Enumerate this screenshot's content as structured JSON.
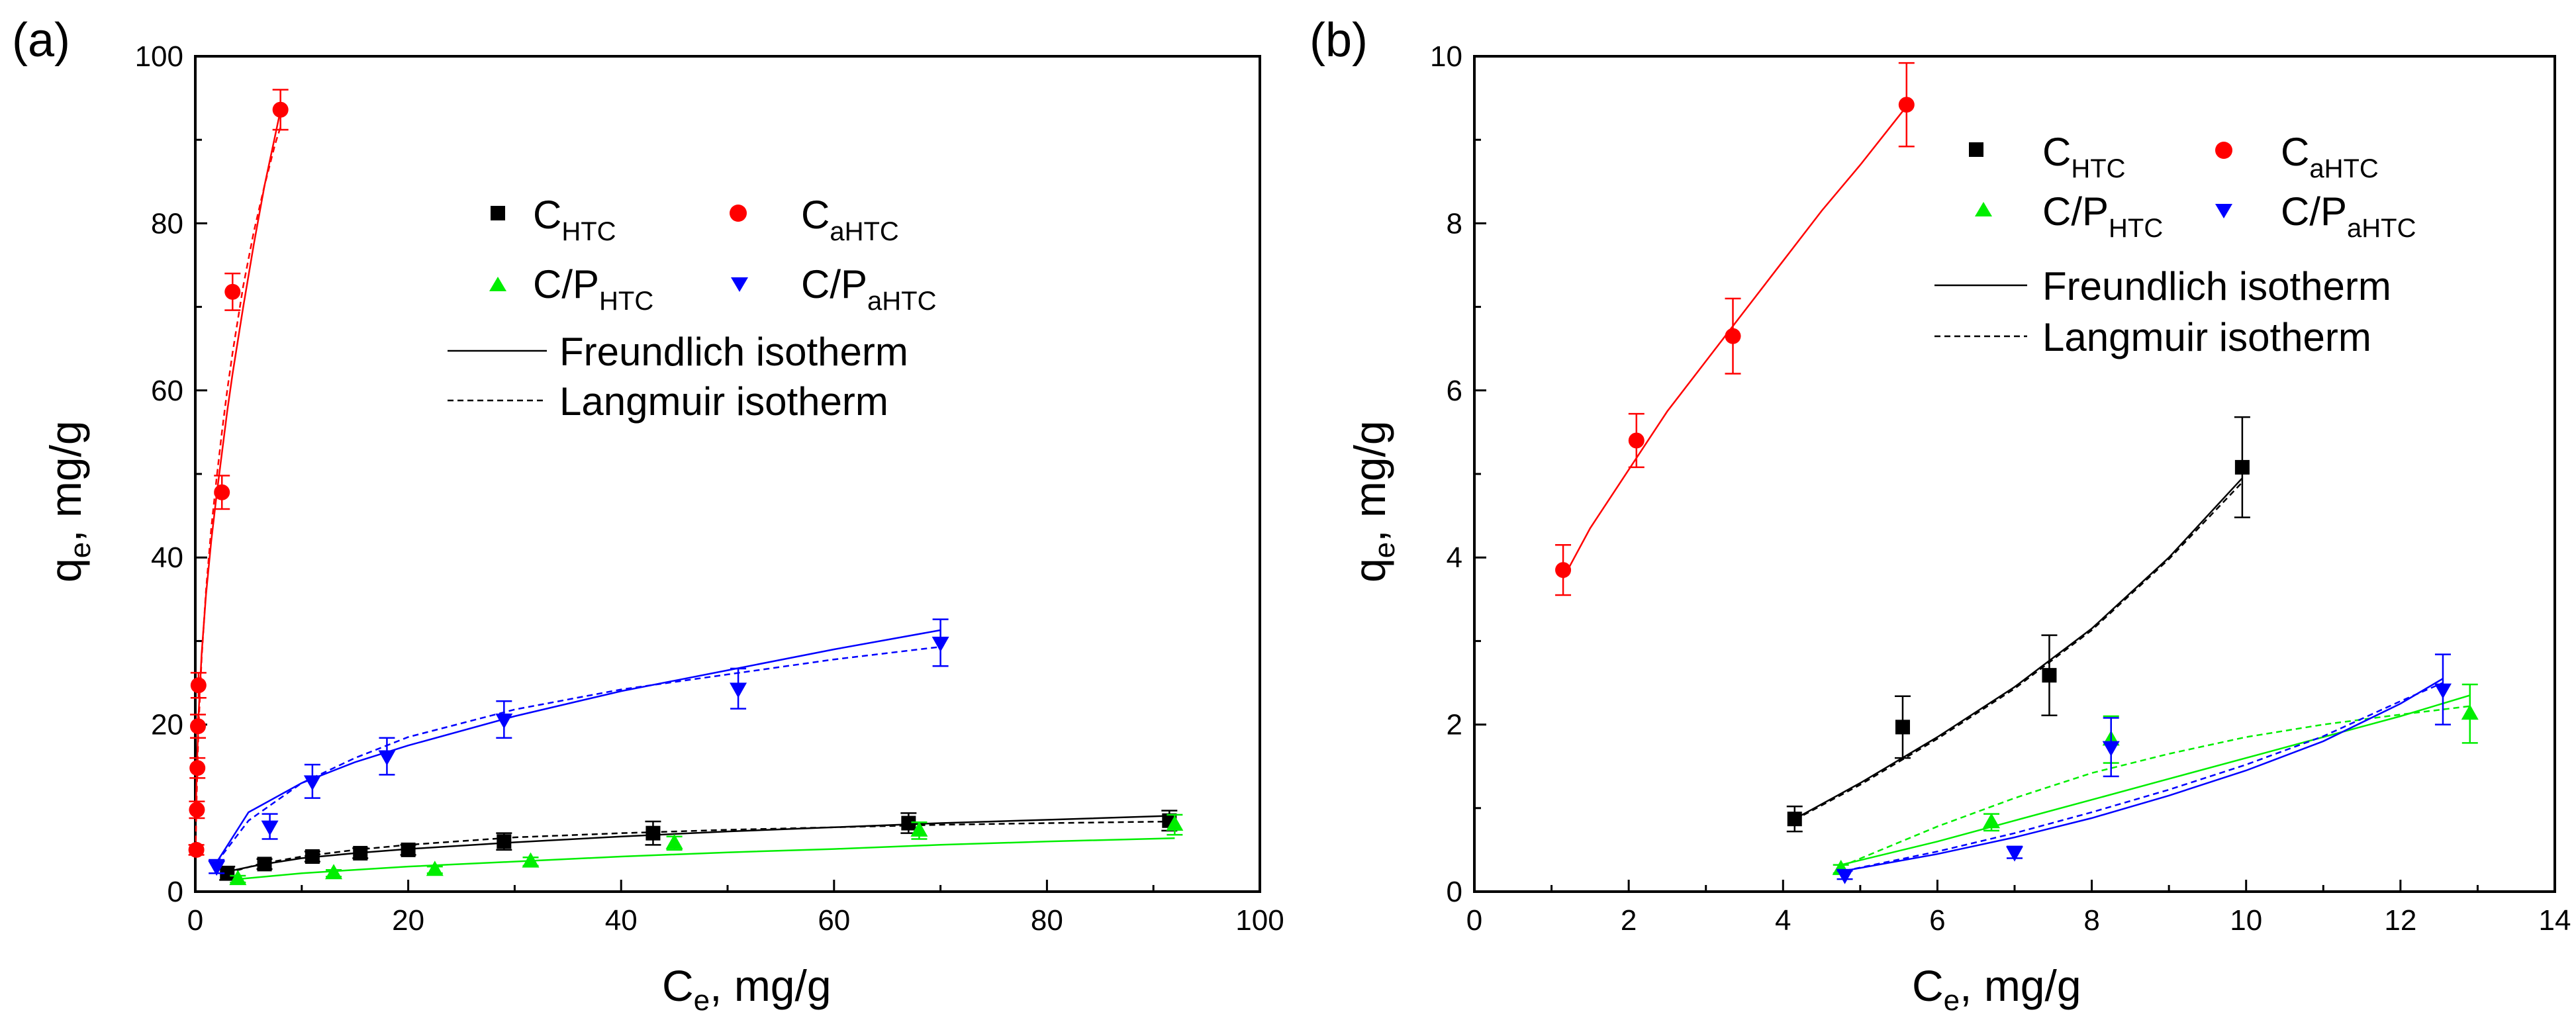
{
  "chart_data": [
    {
      "type": "scatter",
      "panel_label": "(a)",
      "xlabel": {
        "main": "C",
        "sub": "e",
        "rest": ", mg/g"
      },
      "ylabel": {
        "main": "q",
        "sub": "e",
        "rest": ", mg/g"
      },
      "xlim": [
        0,
        100
      ],
      "ylim": [
        0,
        100
      ],
      "xticks": [
        0,
        20,
        40,
        60,
        80,
        100
      ],
      "yticks": [
        0,
        20,
        40,
        60,
        80,
        100
      ],
      "xtick_labels": [
        "0",
        "20",
        "40",
        "60",
        "80",
        "100"
      ],
      "ytick_labels": [
        "0",
        "20",
        "40",
        "60",
        "80",
        "100"
      ],
      "legend_position": "top-center",
      "series": [
        {
          "name": "C_HTC",
          "label_main": "C",
          "label_sub": "HTC",
          "color": "#000000",
          "marker": "square",
          "x": [
            3,
            6.5,
            11,
            15.5,
            20,
            29,
            43,
            67,
            91.5
          ],
          "y": [
            2.2,
            3.3,
            4.2,
            4.6,
            5.0,
            6.0,
            7.0,
            8.2,
            8.5
          ],
          "err": [
            0.8,
            0.6,
            0.6,
            0.6,
            0.6,
            1.0,
            1.4,
            1.2,
            1.2
          ]
        },
        {
          "name": "C_aHTC",
          "label_main": "C",
          "label_sub": "aHTC",
          "color": "#ff0000",
          "marker": "circle",
          "x": [
            0.1,
            0.15,
            0.2,
            0.25,
            0.3,
            2.5,
            3.5,
            8
          ],
          "y": [
            5,
            9.8,
            14.8,
            19.8,
            24.7,
            47.8,
            71.8,
            93.6
          ],
          "err": [
            0.6,
            1.0,
            1.2,
            1.4,
            1.5,
            2.0,
            2.2,
            2.4
          ]
        },
        {
          "name": "C/P_HTC",
          "label_main": "C/P",
          "label_sub": "HTC",
          "color": "#00ee00",
          "marker": "triangle-up",
          "x": [
            4,
            13,
            22.5,
            31.5,
            45,
            68,
            92
          ],
          "y": [
            1.5,
            2.2,
            2.6,
            3.6,
            5.8,
            7.3,
            8.0
          ],
          "err": [
            0.4,
            0.4,
            0.4,
            0.5,
            0.8,
            1.0,
            1.2
          ]
        },
        {
          "name": "C/P_aHTC",
          "label_main": "C/P",
          "label_sub": "aHTC",
          "color": "#0000ff",
          "marker": "triangle-down",
          "x": [
            2,
            7,
            11,
            18,
            29,
            51,
            70
          ],
          "y": [
            3.0,
            7.8,
            13.2,
            16.2,
            20.6,
            24.3,
            29.8
          ],
          "err": [
            0.8,
            1.5,
            2.0,
            2.2,
            2.2,
            2.4,
            2.8
          ]
        }
      ],
      "fits": [
        {
          "series": "C_aHTC",
          "model": "Freundlich",
          "style": "solid",
          "color": "#ff0000",
          "x": [
            0.05,
            0.1,
            0.3,
            0.6,
            1.0,
            1.5,
            2.0,
            2.5,
            3.0,
            3.5,
            4.5,
            5.5,
            6.5,
            7.5,
            8.0
          ],
          "y": [
            9.0,
            12.5,
            21.0,
            28.5,
            35.5,
            42.0,
            47.5,
            52.5,
            57.5,
            62.0,
            70.0,
            77.5,
            84.5,
            90.5,
            93.5
          ]
        },
        {
          "series": "C_aHTC",
          "model": "Langmuir",
          "style": "dashed",
          "color": "#ff0000",
          "x": [
            0.05,
            0.1,
            0.3,
            0.6,
            1.0,
            1.5,
            2.0,
            2.5,
            3.0,
            3.5,
            4.5,
            5.5,
            6.5,
            7.5,
            8.0
          ],
          "y": [
            6.0,
            10.0,
            19.5,
            28.0,
            36.0,
            43.5,
            49.5,
            55.0,
            60.0,
            64.5,
            72.5,
            79.0,
            84.5,
            89.5,
            91.5
          ]
        },
        {
          "series": "C/P_aHTC",
          "model": "Freundlich",
          "style": "solid",
          "color": "#0000ff",
          "x": [
            2,
            5,
            10,
            15,
            20,
            30,
            40,
            50,
            60,
            70
          ],
          "y": [
            3.5,
            9.5,
            13.0,
            15.5,
            17.5,
            21.0,
            24.0,
            26.5,
            29.0,
            31.3
          ]
        },
        {
          "series": "C/P_aHTC",
          "model": "Langmuir",
          "style": "dashed",
          "color": "#0000ff",
          "x": [
            2,
            5,
            10,
            15,
            20,
            30,
            40,
            50,
            60,
            70
          ],
          "y": [
            3.5,
            8.5,
            13.0,
            16.0,
            18.5,
            21.8,
            24.2,
            26.0,
            27.8,
            29.3
          ]
        },
        {
          "series": "C_HTC",
          "model": "Freundlich",
          "style": "solid",
          "color": "#000000",
          "x": [
            3,
            6,
            10,
            15,
            20,
            30,
            40,
            50,
            60,
            70,
            80,
            92
          ],
          "y": [
            2.4,
            3.2,
            4.0,
            4.6,
            5.1,
            5.9,
            6.6,
            7.2,
            7.7,
            8.2,
            8.6,
            9.1
          ]
        },
        {
          "series": "C_HTC",
          "model": "Langmuir",
          "style": "dashed",
          "color": "#000000",
          "x": [
            3,
            6,
            10,
            15,
            20,
            30,
            40,
            50,
            60,
            70,
            80,
            92
          ],
          "y": [
            2.2,
            3.3,
            4.2,
            5.0,
            5.6,
            6.5,
            7.0,
            7.4,
            7.7,
            8.0,
            8.2,
            8.4
          ]
        },
        {
          "series": "C/P_HTC",
          "model": "Freundlich",
          "style": "solid",
          "color": "#00ee00",
          "x": [
            4,
            10,
            20,
            30,
            40,
            50,
            60,
            70,
            80,
            92
          ],
          "y": [
            1.5,
            2.2,
            3.0,
            3.6,
            4.2,
            4.7,
            5.1,
            5.6,
            6.0,
            6.4
          ]
        }
      ],
      "legend_lines": [
        "Freundlich isotherm",
        "Langmuir isotherm"
      ]
    },
    {
      "type": "scatter",
      "panel_label": "(b)",
      "xlabel": {
        "main": "C",
        "sub": "e",
        "rest": ", mg/g"
      },
      "ylabel": {
        "main": "q",
        "sub": "e",
        "rest": ", mg/g"
      },
      "xlim": [
        0,
        14
      ],
      "ylim": [
        0,
        10
      ],
      "xticks": [
        0,
        2,
        4,
        6,
        8,
        10,
        12,
        14
      ],
      "yticks": [
        0,
        2,
        4,
        6,
        8,
        10
      ],
      "xtick_labels": [
        "0",
        "2",
        "4",
        "6",
        "8",
        "10",
        "12",
        "14"
      ],
      "ytick_labels": [
        "0",
        "2",
        "4",
        "6",
        "8",
        "10"
      ],
      "legend_position": "top-right",
      "series": [
        {
          "name": "C_HTC",
          "label_main": "C",
          "label_sub": "HTC",
          "color": "#000000",
          "marker": "square",
          "x": [
            4.15,
            5.55,
            7.45,
            9.95
          ],
          "y": [
            0.87,
            1.97,
            2.59,
            5.08
          ],
          "err": [
            0.15,
            0.37,
            0.48,
            0.6
          ]
        },
        {
          "name": "C_aHTC",
          "label_main": "C",
          "label_sub": "aHTC",
          "color": "#ff0000",
          "marker": "circle",
          "x": [
            1.15,
            2.1,
            3.35,
            5.6
          ],
          "y": [
            3.85,
            5.4,
            6.65,
            9.42
          ],
          "err": [
            0.3,
            0.32,
            0.45,
            0.5
          ]
        },
        {
          "name": "C/P_HTC",
          "label_main": "C/P",
          "label_sub": "HTC",
          "color": "#00ee00",
          "marker": "triangle-up",
          "x": [
            4.75,
            6.7,
            8.25,
            12.9
          ],
          "y": [
            0.27,
            0.83,
            1.82,
            2.13
          ],
          "err": [
            0.05,
            0.1,
            0.28,
            0.35
          ]
        },
        {
          "name": "C/P_aHTC",
          "label_main": "C/P",
          "label_sub": "aHTC",
          "color": "#0000ff",
          "marker": "triangle-down",
          "x": [
            4.8,
            7.0,
            8.25,
            12.55
          ],
          "y": [
            0.2,
            0.47,
            1.73,
            2.42
          ],
          "err": [
            0.05,
            0.07,
            0.35,
            0.42
          ]
        }
      ],
      "fits": [
        {
          "series": "C_aHTC",
          "model": "Freundlich",
          "style": "solid",
          "color": "#ff0000",
          "x": [
            1.15,
            1.5,
            2.0,
            2.5,
            3.0,
            3.5,
            4.0,
            4.5,
            5.0,
            5.6
          ],
          "y": [
            3.75,
            4.35,
            5.05,
            5.75,
            6.35,
            6.95,
            7.55,
            8.15,
            8.7,
            9.4
          ]
        },
        {
          "series": "C_HTC",
          "model": "Freundlich",
          "style": "solid",
          "color": "#000000",
          "x": [
            4.15,
            5.0,
            6.0,
            7.0,
            8.0,
            9.0,
            9.95
          ],
          "y": [
            0.87,
            1.3,
            1.85,
            2.45,
            3.15,
            4.0,
            4.95
          ]
        },
        {
          "series": "C_HTC",
          "model": "Langmuir",
          "style": "dashed",
          "color": "#000000",
          "x": [
            4.15,
            5.0,
            6.0,
            7.0,
            8.0,
            9.0,
            9.95
          ],
          "y": [
            0.86,
            1.28,
            1.83,
            2.43,
            3.13,
            3.98,
            4.9
          ]
        },
        {
          "series": "C/P_HTC",
          "model": "Freundlich",
          "style": "solid",
          "color": "#00ee00",
          "x": [
            4.75,
            6,
            7,
            8,
            9,
            10,
            11,
            12,
            12.9
          ],
          "y": [
            0.32,
            0.6,
            0.85,
            1.1,
            1.35,
            1.6,
            1.85,
            2.1,
            2.35
          ]
        },
        {
          "series": "C/P_HTC",
          "model": "Langmuir",
          "style": "dashed",
          "color": "#00ee00",
          "x": [
            4.75,
            6,
            7,
            8,
            9,
            10,
            11,
            12,
            12.9
          ],
          "y": [
            0.3,
            0.78,
            1.12,
            1.42,
            1.65,
            1.85,
            2.0,
            2.12,
            2.22
          ]
        },
        {
          "series": "C/P_aHTC",
          "model": "Freundlich",
          "style": "solid",
          "color": "#0000ff",
          "x": [
            4.8,
            6,
            7,
            8,
            9,
            10,
            11,
            12,
            12.55
          ],
          "y": [
            0.25,
            0.45,
            0.65,
            0.88,
            1.15,
            1.45,
            1.8,
            2.25,
            2.55
          ]
        },
        {
          "series": "C/P_aHTC",
          "model": "Langmuir",
          "style": "dashed",
          "color": "#0000ff",
          "x": [
            4.8,
            6,
            7,
            8,
            9,
            10,
            11,
            12,
            12.55
          ],
          "y": [
            0.25,
            0.48,
            0.7,
            0.95,
            1.22,
            1.52,
            1.86,
            2.28,
            2.5
          ]
        }
      ],
      "legend_lines": [
        "Freundlich isotherm",
        "Langmuir isotherm"
      ]
    }
  ]
}
